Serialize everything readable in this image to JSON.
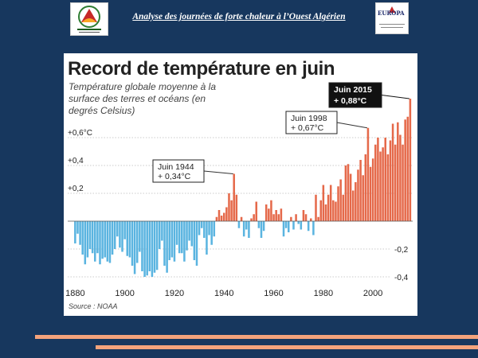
{
  "header": {
    "title": "Analyse des journées de forte chaleur à l’Ouest Algérien",
    "logo_right_text": "EUROPA"
  },
  "colors": {
    "background": "#17375e",
    "positive": "#e5694a",
    "negative": "#5ab4e0",
    "stripe": "#f4a37c"
  },
  "chart_data": {
    "type": "bar",
    "title": "Record de température en juin",
    "subtitle": "Température globale moyenne à la surface des terres et océans (en degrés Celsius)",
    "source": "Source : NOAA",
    "xlabel": "",
    "ylabel": "",
    "ylim": [
      -0.45,
      1.0
    ],
    "grid": "horizontal dotted",
    "xticks": [
      "1880",
      "1900",
      "1920",
      "1940",
      "1960",
      "1980",
      "2000"
    ],
    "yticks_left": [
      "+0,6°C",
      "+0,4",
      "+0,2"
    ],
    "yticks_right": [
      "-0,2",
      "-0,4"
    ],
    "x_start": 1880,
    "values": [
      -0.16,
      -0.09,
      -0.17,
      -0.24,
      -0.31,
      -0.26,
      -0.2,
      -0.23,
      -0.29,
      -0.23,
      -0.31,
      -0.27,
      -0.26,
      -0.29,
      -0.3,
      -0.24,
      -0.2,
      -0.11,
      -0.19,
      -0.22,
      -0.13,
      -0.25,
      -0.26,
      -0.32,
      -0.38,
      -0.3,
      -0.22,
      -0.36,
      -0.4,
      -0.39,
      -0.36,
      -0.4,
      -0.37,
      -0.35,
      -0.2,
      -0.14,
      -0.32,
      -0.37,
      -0.28,
      -0.26,
      -0.29,
      -0.17,
      -0.23,
      -0.23,
      -0.29,
      -0.21,
      -0.14,
      -0.18,
      -0.28,
      -0.32,
      -0.1,
      -0.05,
      -0.12,
      -0.24,
      -0.1,
      -0.17,
      -0.11,
      0.03,
      0.08,
      0.04,
      0.06,
      0.1,
      0.2,
      0.15,
      0.34,
      0.19,
      -0.05,
      0.03,
      -0.11,
      -0.06,
      -0.12,
      0.02,
      0.05,
      0.14,
      -0.05,
      -0.12,
      -0.07,
      0.12,
      0.09,
      0.15,
      0.05,
      0.08,
      0.05,
      0.09,
      -0.11,
      -0.05,
      -0.08,
      0.03,
      -0.06,
      0.05,
      -0.02,
      -0.06,
      0.08,
      0.05,
      -0.07,
      0.02,
      -0.1,
      0.19,
      0.03,
      0.15,
      0.26,
      0.12,
      0.19,
      0.26,
      0.15,
      0.14,
      0.25,
      0.3,
      0.19,
      0.4,
      0.41,
      0.34,
      0.22,
      0.28,
      0.37,
      0.44,
      0.33,
      0.48,
      0.67,
      0.39,
      0.45,
      0.55,
      0.6,
      0.5,
      0.53,
      0.6,
      0.48,
      0.58,
      0.7,
      0.55,
      0.71,
      0.62,
      0.55,
      0.73,
      0.75,
      0.88
    ],
    "annotations": [
      {
        "year": 1944,
        "label_line1": "Juin 1944",
        "label_line2": "+ 0,34°C",
        "highlight": false
      },
      {
        "year": 1998,
        "label_line1": "Juin 1998",
        "label_line2": "+ 0,67°C",
        "highlight": false
      },
      {
        "year": 2015,
        "label_line1": "Juin 2015",
        "label_line2": "+ 0,88°C",
        "highlight": true
      }
    ]
  }
}
